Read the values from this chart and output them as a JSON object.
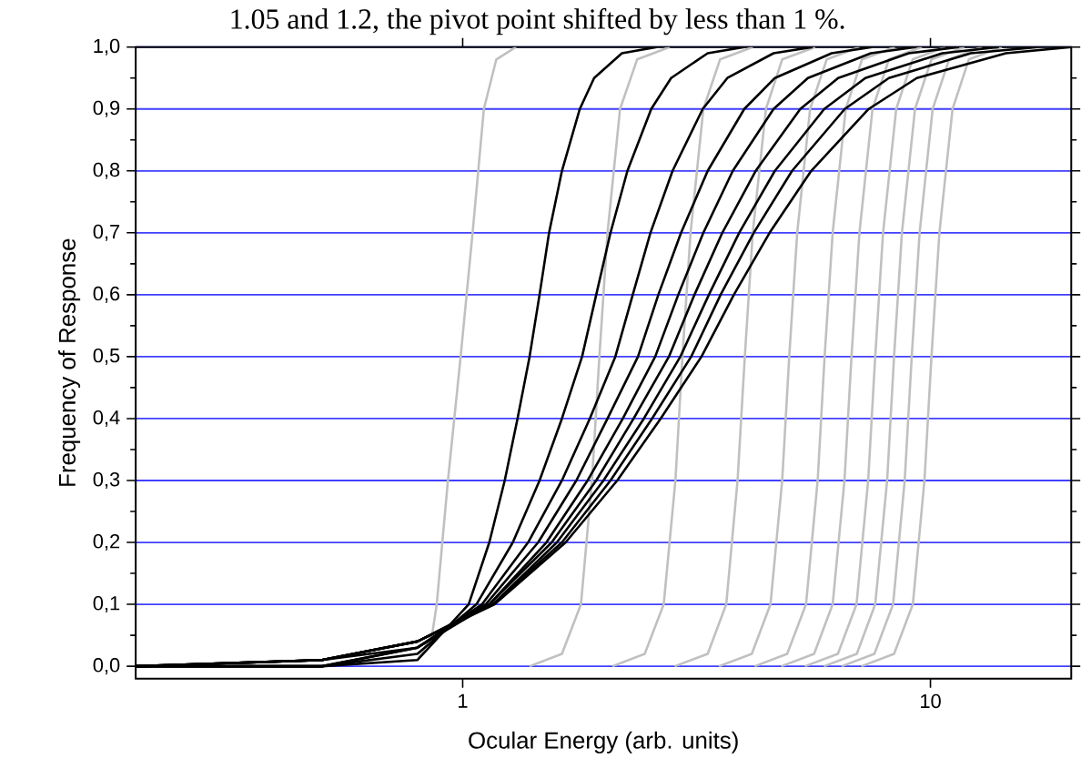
{
  "chart_data": {
    "type": "line",
    "annotations": [
      "1.05 and 1.2, the pivot point shifted by less than 1 %."
    ],
    "xlabel": "Ocular Energy (arb. units)",
    "ylabel": "Frequency of Response",
    "log": "x",
    "grid": "y",
    "xlim": [
      0.2,
      20
    ],
    "ylim": [
      -0.02,
      1.0
    ],
    "xticks": [
      1,
      10
    ],
    "yticks": [
      {
        "value": 0,
        "label": "0,0"
      },
      {
        "value": 0.1,
        "label": "0,1"
      },
      {
        "value": 0.2,
        "label": "0,2"
      },
      {
        "value": 0.3,
        "label": "0,3"
      },
      {
        "value": 0.4,
        "label": "0,4"
      },
      {
        "value": 0.5,
        "label": "0,5"
      },
      {
        "value": 0.6,
        "label": "0,6"
      },
      {
        "value": 0.7,
        "label": "0,7"
      },
      {
        "value": 0.8,
        "label": "0,8"
      },
      {
        "value": 0.9,
        "label": "0,9"
      },
      {
        "value": 1.0,
        "label": "1,0"
      }
    ],
    "series": [
      {
        "color": "#c0c0c0",
        "x": [
          0.8,
          0.86,
          0.88,
          0.93,
          0.99,
          1.05,
          1.11,
          1.18,
          1.3
        ],
        "values": [
          0.01,
          0.05,
          0.1,
          0.3,
          0.5,
          0.7,
          0.9,
          0.98,
          1.0
        ]
      },
      {
        "color": "#c0c0c0",
        "x": [
          1.39,
          1.63,
          1.79,
          1.89,
          1.96,
          2.04,
          2.17,
          2.36,
          2.77
        ],
        "values": [
          0,
          0.02,
          0.1,
          0.3,
          0.5,
          0.7,
          0.9,
          0.98,
          1.0
        ]
      },
      {
        "color": "#c0c0c0",
        "x": [
          2.09,
          2.45,
          2.69,
          2.85,
          2.95,
          3.07,
          3.27,
          3.55,
          4.17
        ],
        "values": [
          0,
          0.02,
          0.1,
          0.3,
          0.5,
          0.7,
          0.9,
          0.98,
          1.0
        ]
      },
      {
        "color": "#c0c0c0",
        "x": [
          2.84,
          3.34,
          3.66,
          3.87,
          4.01,
          4.17,
          4.45,
          4.82,
          5.67
        ],
        "values": [
          0,
          0.02,
          0.1,
          0.3,
          0.5,
          0.7,
          0.9,
          0.98,
          1.0
        ]
      },
      {
        "color": "#c0c0c0",
        "x": [
          3.53,
          4.15,
          4.55,
          4.82,
          4.99,
          5.19,
          5.53,
          6.0,
          7.05
        ],
        "values": [
          0,
          0.02,
          0.1,
          0.3,
          0.5,
          0.7,
          0.9,
          0.98,
          1.0
        ]
      },
      {
        "color": "#c0c0c0",
        "x": [
          4.21,
          4.94,
          5.42,
          5.74,
          5.94,
          6.18,
          6.59,
          7.14,
          8.39
        ],
        "values": [
          0,
          0.02,
          0.1,
          0.3,
          0.5,
          0.7,
          0.9,
          0.98,
          1.0
        ]
      },
      {
        "color": "#c0c0c0",
        "x": [
          4.8,
          5.64,
          6.18,
          6.55,
          6.78,
          7.05,
          7.52,
          8.15,
          9.58
        ],
        "values": [
          0,
          0.02,
          0.1,
          0.3,
          0.5,
          0.7,
          0.9,
          0.98,
          1.0
        ]
      },
      {
        "color": "#c0c0c0",
        "x": [
          5.39,
          6.34,
          6.95,
          7.36,
          7.62,
          7.92,
          8.45,
          9.16,
          10.77
        ],
        "values": [
          0,
          0.02,
          0.1,
          0.3,
          0.5,
          0.7,
          0.9,
          0.98,
          1.0
        ]
      },
      {
        "color": "#c0c0c0",
        "x": [
          5.92,
          6.96,
          7.62,
          8.08,
          8.36,
          8.69,
          9.27,
          10.05,
          11.81
        ],
        "values": [
          0,
          0.02,
          0.1,
          0.3,
          0.5,
          0.7,
          0.9,
          0.98,
          1.0
        ]
      },
      {
        "color": "#c0c0c0",
        "x": [
          6.46,
          7.59,
          8.32,
          8.81,
          9.12,
          9.48,
          10.11,
          10.96,
          12.89
        ],
        "values": [
          0,
          0.02,
          0.1,
          0.3,
          0.5,
          0.7,
          0.9,
          0.98,
          1.0
        ]
      },
      {
        "color": "#c0c0c0",
        "x": [
          7.12,
          8.36,
          9.17,
          9.71,
          10.05,
          10.45,
          11.15,
          12.08,
          14.2
        ],
        "values": [
          0,
          0.02,
          0.1,
          0.3,
          0.5,
          0.7,
          0.9,
          0.98,
          1.0
        ]
      },
      {
        "color": "#000000",
        "x": [
          0.2,
          0.5,
          0.8,
          1.03,
          1.14,
          1.23,
          1.31,
          1.39,
          1.46,
          1.53,
          1.63,
          1.78,
          1.91,
          2.19,
          2.6
        ],
        "values": [
          0,
          0,
          0.01,
          0.1,
          0.2,
          0.3,
          0.4,
          0.5,
          0.6,
          0.7,
          0.8,
          0.9,
          0.95,
          0.99,
          1.0
        ]
      },
      {
        "color": "#000000",
        "x": [
          0.2,
          0.5,
          0.8,
          1.07,
          1.28,
          1.46,
          1.63,
          1.8,
          1.93,
          2.07,
          2.25,
          2.53,
          2.79,
          3.34,
          4.0
        ],
        "values": [
          0,
          0,
          0.02,
          0.1,
          0.2,
          0.3,
          0.4,
          0.5,
          0.6,
          0.7,
          0.8,
          0.9,
          0.95,
          0.99,
          1.0
        ]
      },
      {
        "color": "#000000",
        "x": [
          0.2,
          0.5,
          0.8,
          1.1,
          1.38,
          1.63,
          1.87,
          2.12,
          2.31,
          2.52,
          2.81,
          3.26,
          3.68,
          4.62,
          5.6
        ],
        "values": [
          0,
          0,
          0.03,
          0.1,
          0.2,
          0.3,
          0.4,
          0.5,
          0.6,
          0.7,
          0.8,
          0.9,
          0.95,
          0.99,
          1.0
        ]
      },
      {
        "color": "#000000",
        "x": [
          0.2,
          0.5,
          0.8,
          1.12,
          1.45,
          1.75,
          2.04,
          2.37,
          2.62,
          2.93,
          3.34,
          4.0,
          4.65,
          6.15,
          7.5
        ],
        "values": [
          0,
          0,
          0.03,
          0.1,
          0.2,
          0.3,
          0.4,
          0.5,
          0.6,
          0.7,
          0.8,
          0.9,
          0.95,
          0.99,
          1.0
        ]
      },
      {
        "color": "#000000",
        "x": [
          0.2,
          0.5,
          0.8,
          1.14,
          1.51,
          1.85,
          2.2,
          2.58,
          2.89,
          3.27,
          3.78,
          4.62,
          5.47,
          7.46,
          9.3
        ],
        "values": [
          0,
          0.01,
          0.03,
          0.1,
          0.2,
          0.3,
          0.4,
          0.5,
          0.6,
          0.7,
          0.8,
          0.9,
          0.95,
          0.99,
          1.0
        ]
      },
      {
        "color": "#000000",
        "x": [
          0.2,
          0.5,
          0.8,
          1.14,
          1.55,
          1.93,
          2.32,
          2.76,
          3.13,
          3.59,
          4.23,
          5.27,
          6.35,
          8.99,
          11.5
        ],
        "values": [
          0,
          0.01,
          0.04,
          0.1,
          0.2,
          0.3,
          0.4,
          0.5,
          0.6,
          0.7,
          0.8,
          0.9,
          0.95,
          0.99,
          1.0
        ]
      },
      {
        "color": "#000000",
        "x": [
          0.2,
          0.5,
          0.8,
          1.16,
          1.59,
          2.0,
          2.44,
          2.92,
          3.36,
          3.9,
          4.65,
          5.93,
          7.26,
          10.6,
          14
        ],
        "values": [
          0,
          0.01,
          0.04,
          0.1,
          0.2,
          0.3,
          0.4,
          0.5,
          0.6,
          0.7,
          0.8,
          0.9,
          0.95,
          0.99,
          1.0
        ]
      },
      {
        "color": "#000000",
        "x": [
          0.2,
          0.5,
          0.8,
          1.16,
          1.63,
          2.07,
          2.54,
          3.08,
          3.56,
          4.19,
          5.06,
          6.56,
          8.15,
          12.2,
          17
        ],
        "values": [
          0,
          0.01,
          0.04,
          0.1,
          0.2,
          0.3,
          0.4,
          0.5,
          0.6,
          0.7,
          0.8,
          0.9,
          0.95,
          0.99,
          1.0
        ]
      },
      {
        "color": "#000000",
        "x": [
          0.2,
          0.5,
          0.8,
          1.17,
          1.66,
          2.14,
          2.65,
          3.24,
          3.8,
          4.53,
          5.56,
          7.38,
          9.35,
          14.5,
          20
        ],
        "values": [
          0,
          0.01,
          0.04,
          0.1,
          0.2,
          0.3,
          0.4,
          0.5,
          0.6,
          0.7,
          0.8,
          0.9,
          0.95,
          0.99,
          1.0
        ]
      }
    ]
  }
}
